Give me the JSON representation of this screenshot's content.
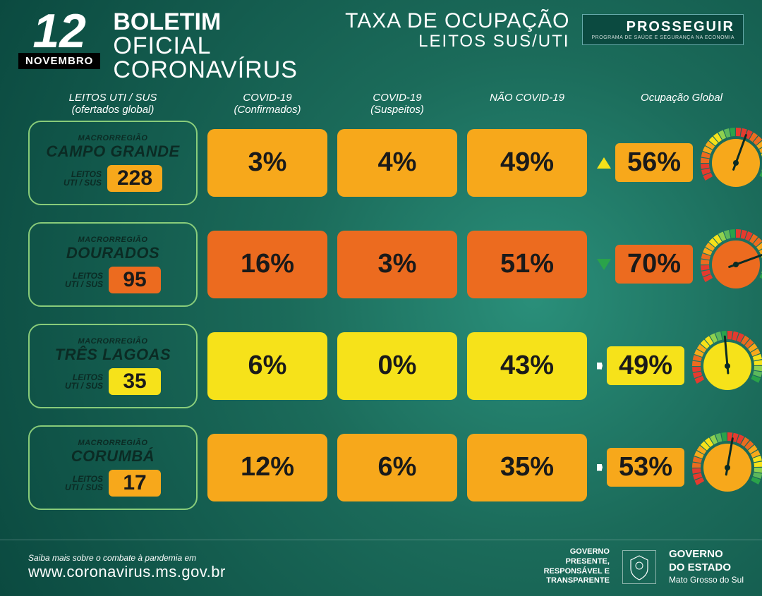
{
  "colors": {
    "yellow": "#f6e21a",
    "orange_light": "#f7a81b",
    "orange_dark": "#ec6b1f",
    "green_border": "#9ee082",
    "text_dark": "#1a1a1a"
  },
  "header": {
    "day": "12",
    "month": "NOVEMBRO",
    "title_line1": "BOLETIM",
    "title_line2": "OFICIAL",
    "title_line3": "CORONAVÍRUS",
    "occ_line1": "TAXA DE OCUPAÇÃO",
    "occ_line2": "LEITOS SUS/UTI",
    "logo_text": "PROSSEGUIR",
    "logo_sub": "PROGRAMA DE SAÚDE E SEGURANÇA NA ECONOMIA"
  },
  "columns": {
    "c0a": "LEITOS UTI / SUS",
    "c0b": "(ofertados global)",
    "c1a": "COVID-19",
    "c1b": "(Confirmados)",
    "c2a": "COVID-19",
    "c2b": "(Suspeitos)",
    "c3": "NÃO COVID-19",
    "c4": "Ocupação Global"
  },
  "region_labels": {
    "macro": "MACRORREGIÃO",
    "beds_lbl1": "LEITOS",
    "beds_lbl2": "UTI / SUS"
  },
  "rows": [
    {
      "name": "CAMPO GRANDE",
      "beds": "228",
      "beds_color": "#f7a81b",
      "confirmed": "3%",
      "suspect": "4%",
      "noncovid": "49%",
      "cell_color": "#f7a81b",
      "global": "56%",
      "global_color": "#f7a81b",
      "trend": "up",
      "trend_color": "#f6e21a",
      "gauge_fill": "#f7a81b",
      "needle_deg": 20
    },
    {
      "name": "DOURADOS",
      "beds": "95",
      "beds_color": "#ec6b1f",
      "confirmed": "16%",
      "suspect": "3%",
      "noncovid": "51%",
      "cell_color": "#ec6b1f",
      "global": "70%",
      "global_color": "#ec6b1f",
      "trend": "down",
      "trend_color": "#2aa34a",
      "gauge_fill": "#ec6b1f",
      "needle_deg": 70
    },
    {
      "name": "TRÊS LAGOAS",
      "beds": "35",
      "beds_color": "#f6e21a",
      "confirmed": "6%",
      "suspect": "0%",
      "noncovid": "43%",
      "cell_color": "#f6e21a",
      "global": "49%",
      "global_color": "#f6e21a",
      "trend": "flat",
      "trend_color": "#ffffff",
      "gauge_fill": "#f6e21a",
      "needle_deg": -5
    },
    {
      "name": "CORUMBÁ",
      "beds": "17",
      "beds_color": "#f7a81b",
      "confirmed": "12%",
      "suspect": "6%",
      "noncovid": "35%",
      "cell_color": "#f7a81b",
      "global": "53%",
      "global_color": "#f7a81b",
      "trend": "flat",
      "trend_color": "#ffffff",
      "gauge_fill": "#f7a81b",
      "needle_deg": 10
    }
  ],
  "gauge": {
    "segment_colors": [
      "#e63a2e",
      "#e63a2e",
      "#e63a2e",
      "#ec6b1f",
      "#ec6b1f",
      "#f7a81b",
      "#f7a81b",
      "#f6e21a",
      "#f6e21a",
      "#8fd14f",
      "#5cb85c",
      "#2aa34a",
      "#e63a2e",
      "#e63a2e",
      "#e63a2e",
      "#ec6b1f",
      "#ec6b1f",
      "#f7a81b",
      "#f7a81b",
      "#f6e21a",
      "#f6e21a",
      "#8fd14f",
      "#5cb85c",
      "#2aa34a"
    ]
  },
  "footer": {
    "lead": "Saiba mais sobre o combate à pandemia em",
    "url": "www.coronavirus.ms.gov.br",
    "gov_left": "GOVERNO\nPRESENTE,\nRESPONSÁVEL E\nTRANSPARENTE",
    "gov_right_1": "GOVERNO",
    "gov_right_2": "DO ESTADO",
    "gov_right_3": "Mato Grosso do Sul"
  }
}
